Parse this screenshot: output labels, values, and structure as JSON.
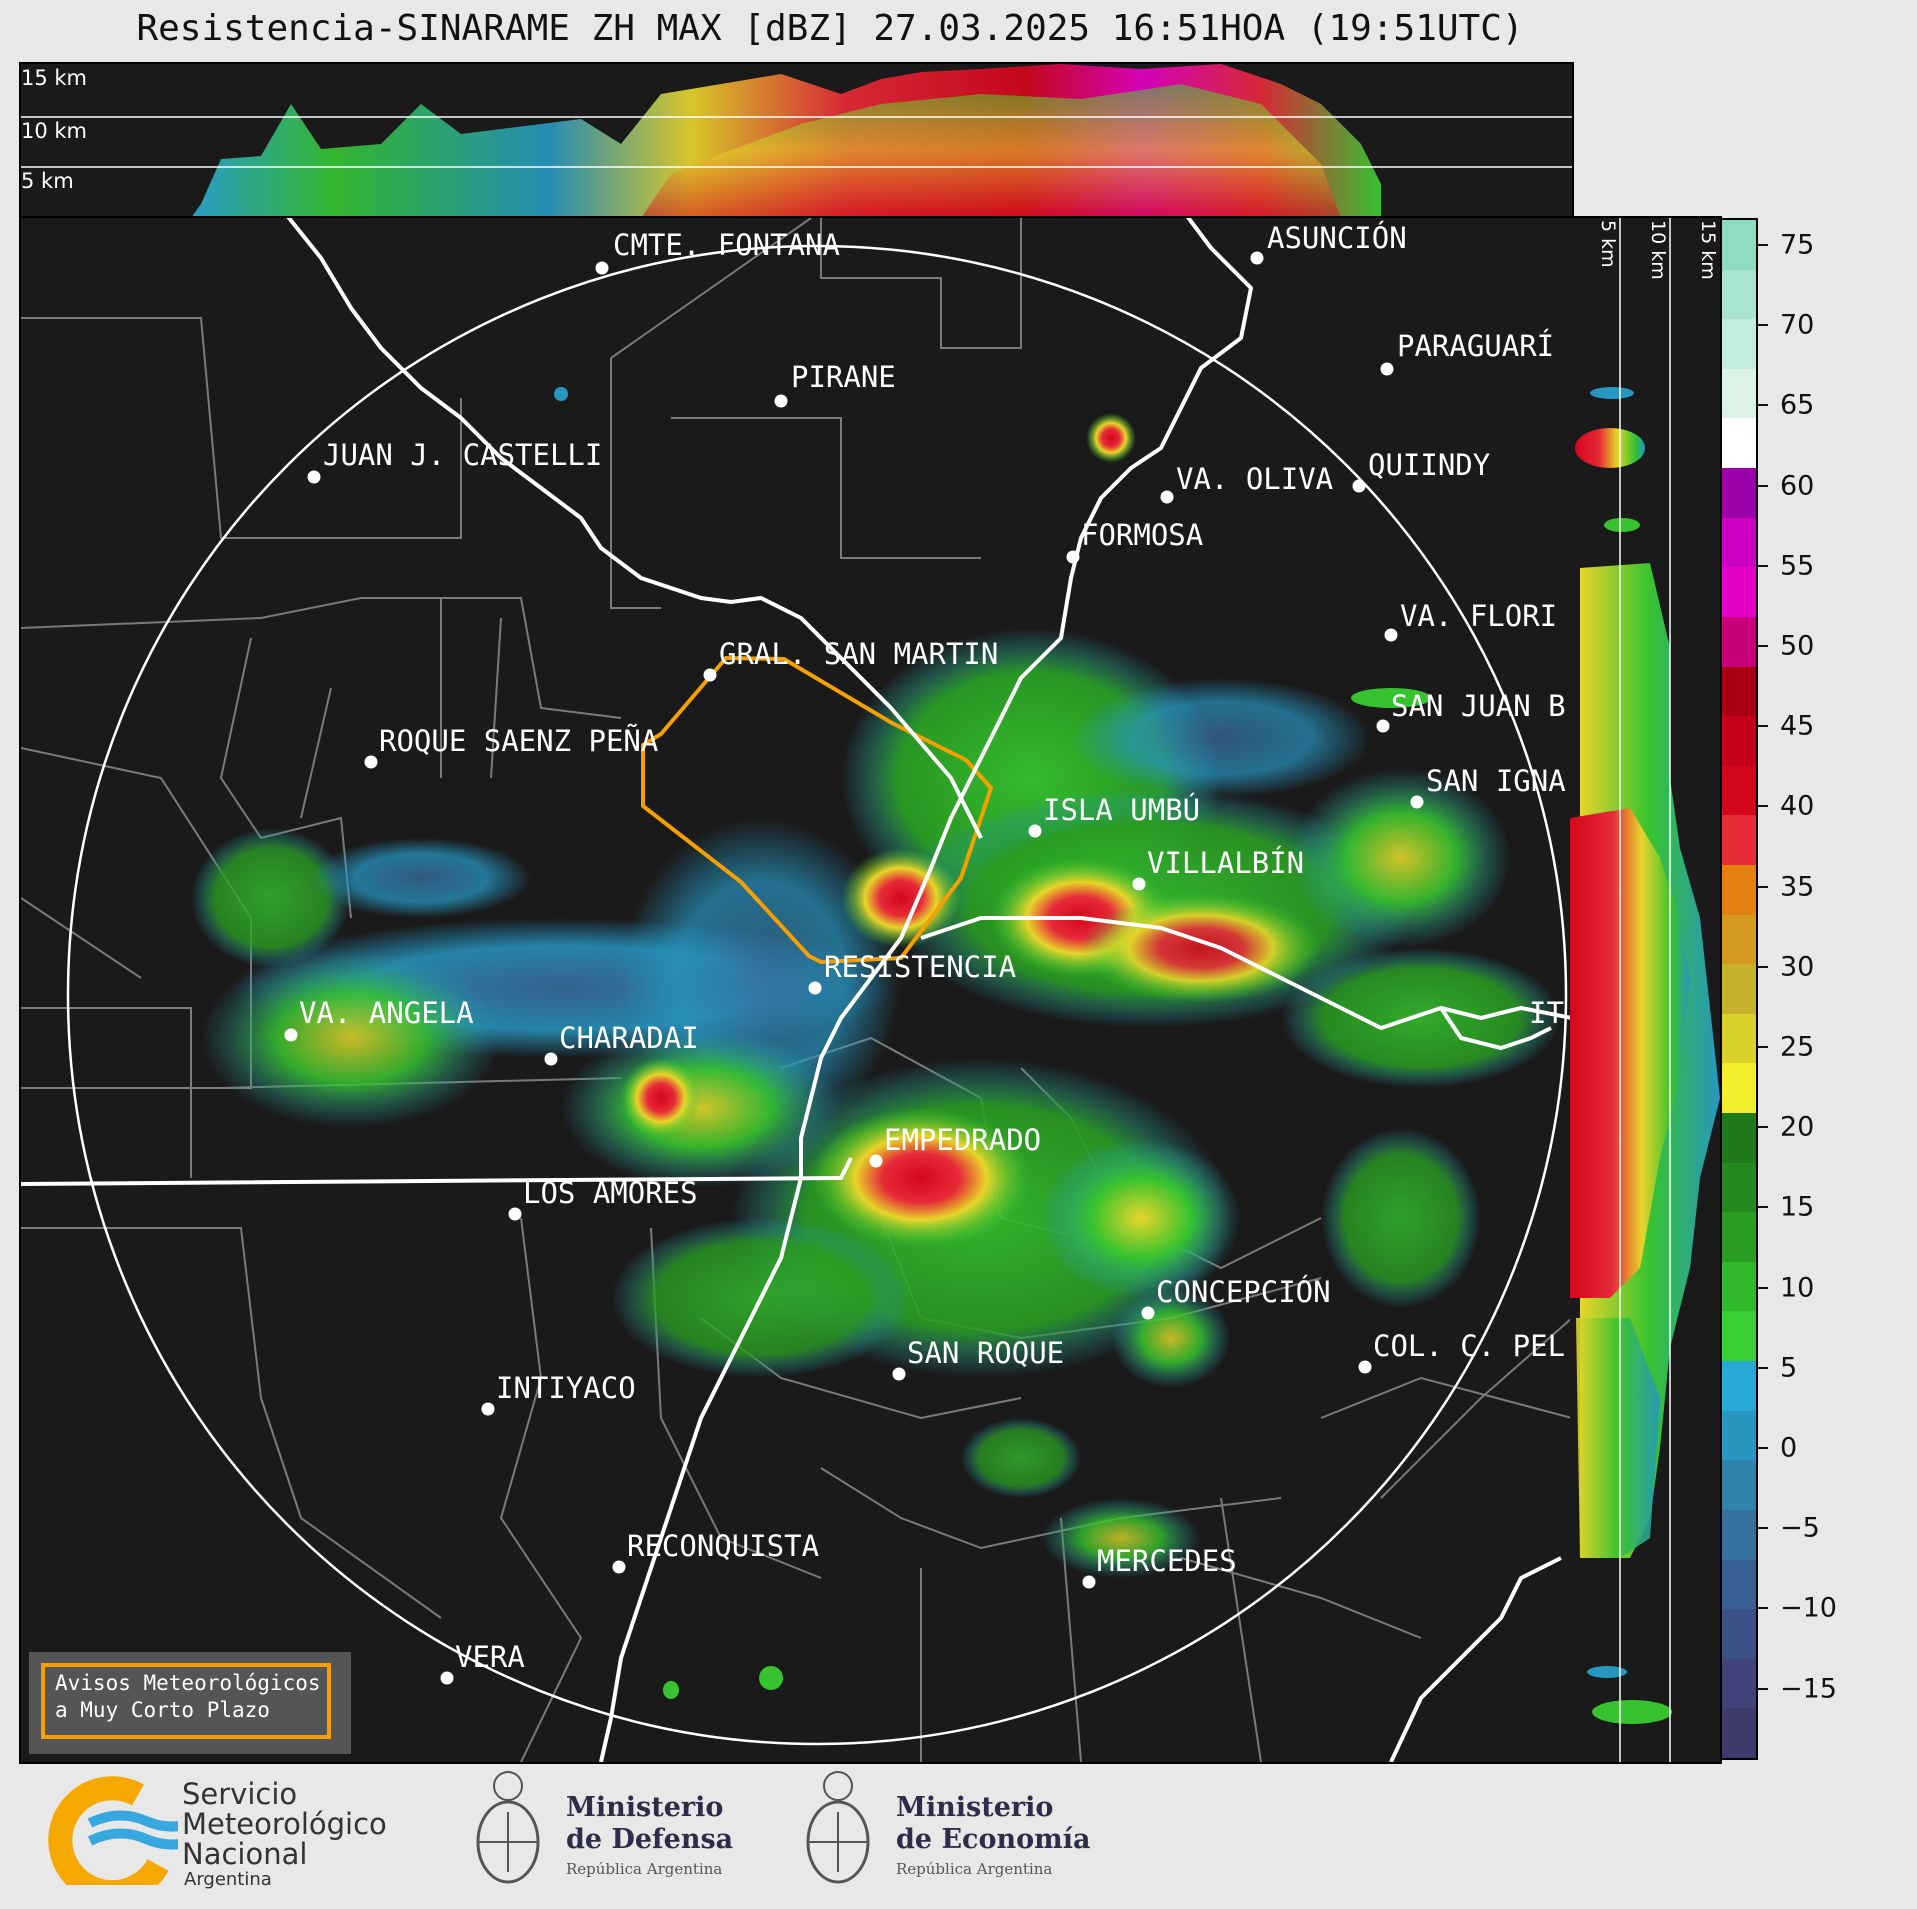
{
  "title": "Resistencia-SINARAME ZH MAX [dBZ] 27.03.2025 16:51HOA (19:51UTC)",
  "top_strip": {
    "levels": [
      "15 km",
      "10 km",
      "5 km"
    ]
  },
  "right_strip": {
    "levels": [
      "5 km",
      "10 km",
      "15 km"
    ]
  },
  "colorbar": {
    "unit": "dBZ",
    "ticks": [
      "75",
      "70",
      "65",
      "60",
      "55",
      "50",
      "45",
      "40",
      "35",
      "30",
      "25",
      "20",
      "15",
      "10",
      "5",
      "0",
      "−5",
      "−10",
      "−15"
    ],
    "colors": [
      "#3d3b6b",
      "#40447a",
      "#3c5287",
      "#3a5f94",
      "#36709f",
      "#3083ad",
      "#2796c1",
      "#27a9d6",
      "#39cf33",
      "#32b82b",
      "#2a9d23",
      "#248a1f",
      "#1f7a1b",
      "#f2ee2e",
      "#d8d22b",
      "#c7b12a",
      "#d49a20",
      "#e47f10",
      "#e62a38",
      "#d4061c",
      "#c4001b",
      "#a80012",
      "#c8007a",
      "#e400c6",
      "#cc00c0",
      "#9c00a8",
      "#ffffff",
      "#dcf3e8",
      "#c2ecdb",
      "#a8e4cf",
      "#8edcc2"
    ]
  },
  "cities": [
    {
      "name": "CMTE. FONTANA"
    },
    {
      "name": "ASUNCIÓN"
    },
    {
      "name": "PARAGUARÍ"
    },
    {
      "name": "PIRANE"
    },
    {
      "name": "JUAN J. CASTELLI"
    },
    {
      "name": "VA. OLIVA"
    },
    {
      "name": "QUIINDY"
    },
    {
      "name": "FORMOSA"
    },
    {
      "name": "VA. FLORI"
    },
    {
      "name": "GRAL. SAN MARTIN"
    },
    {
      "name": "SAN JUAN B"
    },
    {
      "name": "ROQUE SAENZ PEÑA"
    },
    {
      "name": "SAN IGNA"
    },
    {
      "name": "ISLA UMBÚ"
    },
    {
      "name": "VILLALBÍN"
    },
    {
      "name": "RESISTENCIA"
    },
    {
      "name": "VA. ANGELA"
    },
    {
      "name": "CHARADAI"
    },
    {
      "name": "IT"
    },
    {
      "name": "EMPEDRADO"
    },
    {
      "name": "LOS AMORES"
    },
    {
      "name": "CONCEPCIÓN"
    },
    {
      "name": "SAN ROQUE"
    },
    {
      "name": "COL. C. PEL"
    },
    {
      "name": "INTIYACO"
    },
    {
      "name": "RECONQUISTA"
    },
    {
      "name": "MERCEDES"
    },
    {
      "name": "VERA"
    }
  ],
  "warning_box": {
    "line1": "Avisos Meteorológicos",
    "line2": "a Muy Corto Plazo"
  },
  "logos": {
    "smn": {
      "line1": "Servicio",
      "line2": "Meteorológico",
      "line3": "Nacional",
      "line4": "Argentina"
    },
    "defensa": {
      "line1": "Ministerio",
      "line2": "de Defensa",
      "sub": "República Argentina"
    },
    "economia": {
      "line1": "Ministerio",
      "line2": "de Economía",
      "sub": "República Argentina"
    }
  }
}
